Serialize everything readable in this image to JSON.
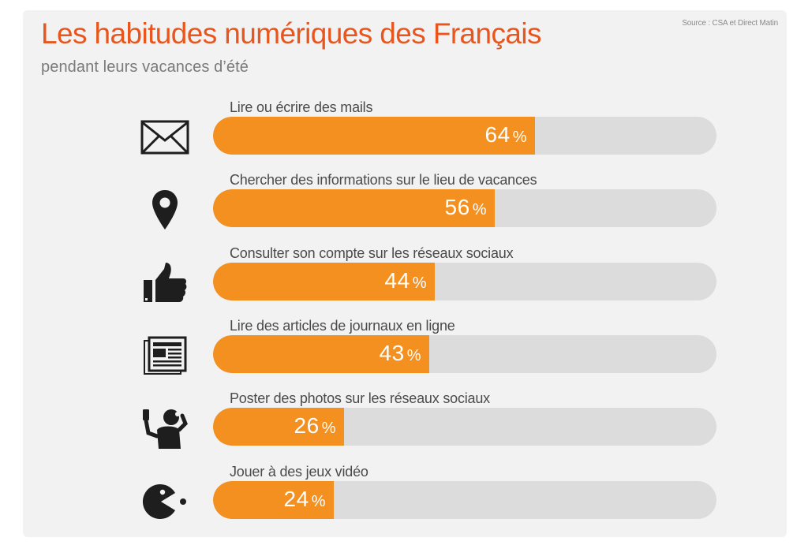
{
  "source": "Source : CSA et Direct Matin",
  "title": "Les habitudes numériques des Français",
  "subtitle": "pendant leurs vacances d’été",
  "colors": {
    "title": "#e8561e",
    "bar": "#f3901f",
    "track": "#dcdcdc",
    "label": "#4a4a4a"
  },
  "chart_data": {
    "type": "bar",
    "orientation": "horizontal",
    "categories": [
      "Lire ou écrire des mails",
      "Chercher des informations sur le lieu de vacances",
      "Consulter son compte sur les réseaux sociaux",
      "Lire des articles de journaux en ligne",
      "Poster des photos sur les réseaux sociaux",
      "Jouer à des jeux vidéo"
    ],
    "values": [
      64,
      56,
      44,
      43,
      26,
      24
    ],
    "value_labels": [
      "64",
      "56",
      "44",
      "43",
      "26",
      "24"
    ],
    "unit": "%",
    "icons": [
      "envelope-icon",
      "map-pin-icon",
      "thumbs-up-icon",
      "newspaper-icon",
      "selfie-person-icon",
      "pacman-icon"
    ],
    "xlim": [
      0,
      100
    ],
    "grid": false,
    "legend": "none"
  }
}
